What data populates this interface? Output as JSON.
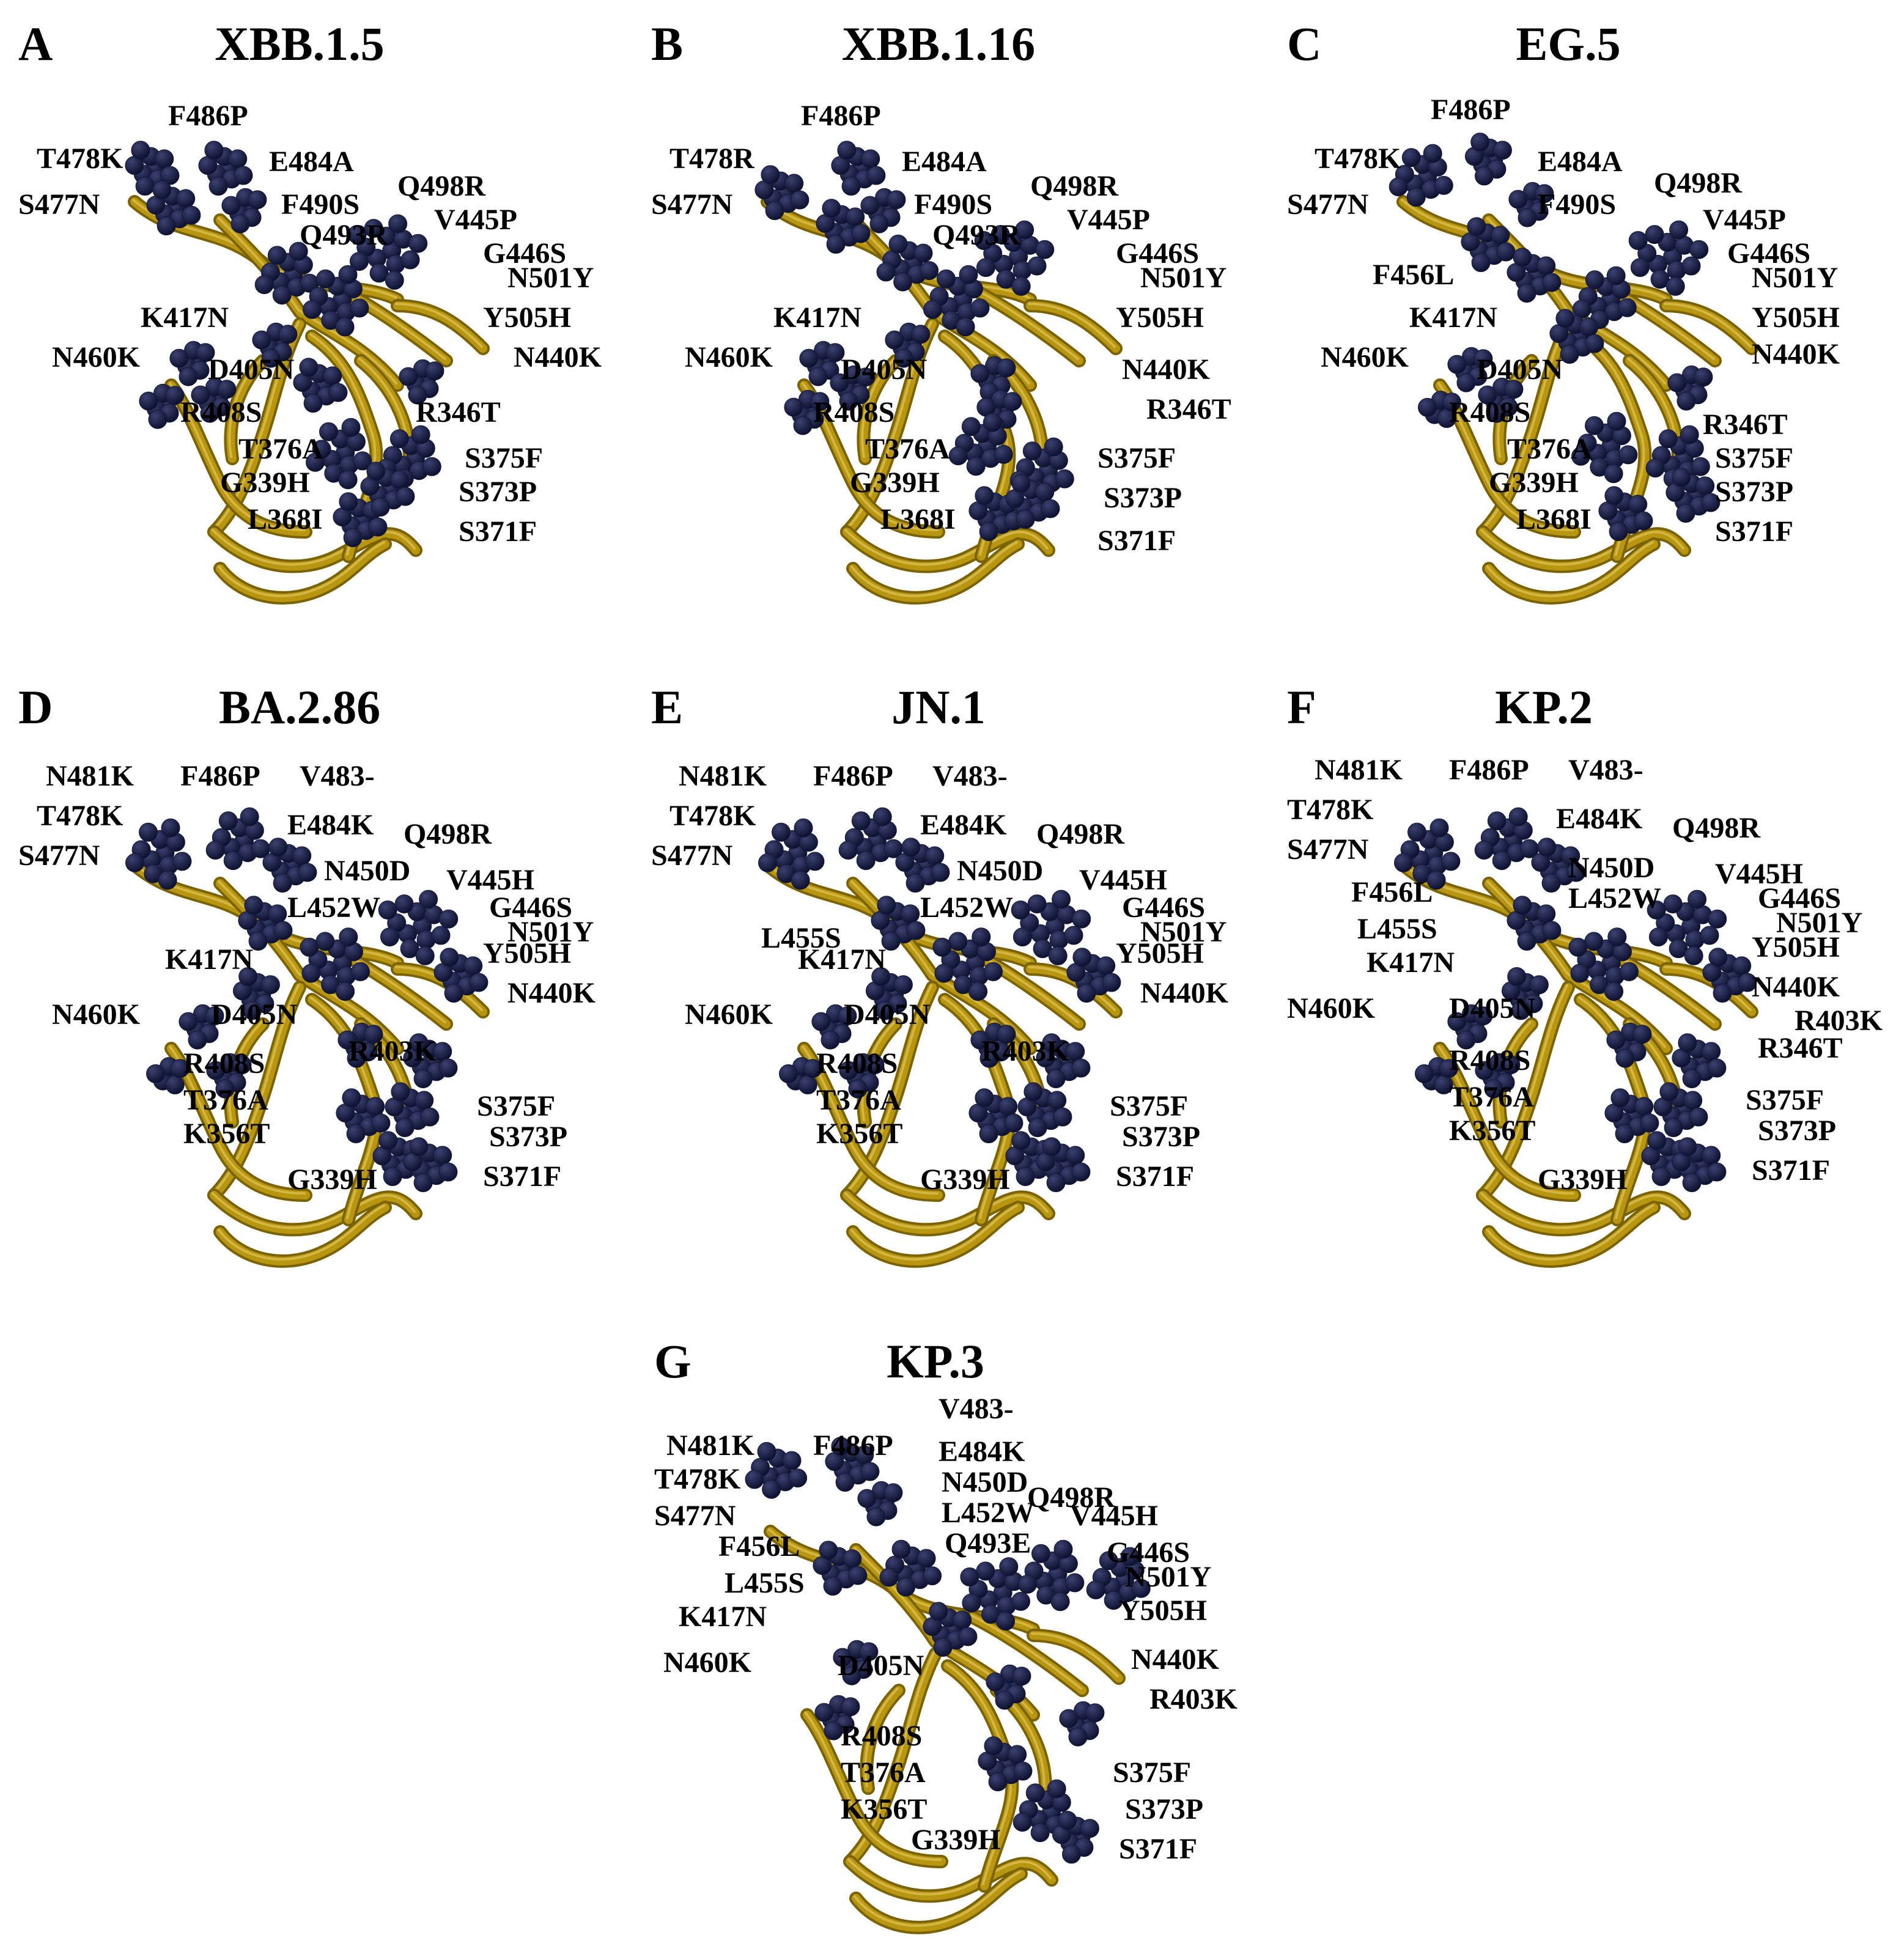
{
  "colors": {
    "ribbon": "#b8960f",
    "ribbon_dark": "#7a6200",
    "ribbon_light": "#e0c45a",
    "sphere": "#15193a",
    "sphere_highlight": "#3b4270",
    "text": "#000000",
    "background": "#ffffff"
  },
  "panels": [
    {
      "letter": "A",
      "title": "XBB.1.5",
      "mutations": [
        "F486P",
        "T478K",
        "E484A",
        "S477N",
        "Q498R",
        "F490S",
        "V445P",
        "Q493R",
        "G446S",
        "N501Y",
        "K417N",
        "Y505H",
        "N460K",
        "N440K",
        "D405N",
        "R408S",
        "R346T",
        "T376A",
        "S375F",
        "G339H",
        "S373P",
        "L368I",
        "S371F"
      ]
    },
    {
      "letter": "B",
      "title": "XBB.1.16",
      "mutations": [
        "F486P",
        "T478R",
        "E484A",
        "S477N",
        "Q498R",
        "F490S",
        "V445P",
        "Q493R",
        "G446S",
        "N501Y",
        "K417N",
        "Y505H",
        "N460K",
        "N440K",
        "D405N",
        "R346T",
        "R408S",
        "T376A",
        "S375F",
        "G339H",
        "S373P",
        "L368I",
        "S371F"
      ]
    },
    {
      "letter": "C",
      "title": "EG.5",
      "mutations": [
        "F486P",
        "T478K",
        "E484A",
        "Q498R",
        "S477N",
        "F490S",
        "V445P",
        "G446S",
        "F456L",
        "N501Y",
        "K417N",
        "Y505H",
        "N440K",
        "N460K",
        "D405N",
        "R408S",
        "R346T",
        "T376A",
        "S375F",
        "G339H",
        "S373P",
        "L368I",
        "S371F"
      ]
    },
    {
      "letter": "D",
      "title": "BA.2.86",
      "mutations": [
        "N481K",
        "F486P",
        "V483-",
        "T478K",
        "E484K",
        "Q498R",
        "S477N",
        "N450D",
        "V445H",
        "L452W",
        "G446S",
        "N501Y",
        "K417N",
        "Y505H",
        "N440K",
        "N460K",
        "D405N",
        "R403K",
        "R408S",
        "T376A",
        "S375F",
        "K356T",
        "S373P",
        "G339H",
        "S371F"
      ]
    },
    {
      "letter": "E",
      "title": "JN.1",
      "mutations": [
        "N481K",
        "F486P",
        "V483-",
        "T478K",
        "E484K",
        "Q498R",
        "S477N",
        "N450D",
        "V445H",
        "L452W",
        "G446S",
        "L455S",
        "N501Y",
        "K417N",
        "Y505H",
        "N440K",
        "N460K",
        "D405N",
        "R403K",
        "R408S",
        "T376A",
        "S375F",
        "K356T",
        "S373P",
        "G339H",
        "S371F"
      ]
    },
    {
      "letter": "F",
      "title": "KP.2",
      "mutations": [
        "N481K",
        "F486P",
        "V483-",
        "T478K",
        "E484K",
        "Q498R",
        "S477N",
        "N450D",
        "V445H",
        "F456L",
        "L452W",
        "G446S",
        "L455S",
        "N501Y",
        "K417N",
        "Y505H",
        "N440K",
        "N460K",
        "D405N",
        "R403K",
        "R346T",
        "R408S",
        "T376A",
        "S375F",
        "K356T",
        "S373P",
        "G339H",
        "S371F"
      ]
    },
    {
      "letter": "G",
      "title": "KP.3",
      "mutations": [
        "V483-",
        "N481K",
        "F486P",
        "E484K",
        "T478K",
        "N450D",
        "Q498R",
        "S477N",
        "L452W",
        "V445H",
        "Q493E",
        "F456L",
        "G446S",
        "L455S",
        "N501Y",
        "K417N",
        "Y505H",
        "N460K",
        "D405N",
        "N440K",
        "R403K",
        "R408S",
        "T376A",
        "S375F",
        "K356T",
        "S373P",
        "G339H",
        "S371F"
      ]
    }
  ]
}
